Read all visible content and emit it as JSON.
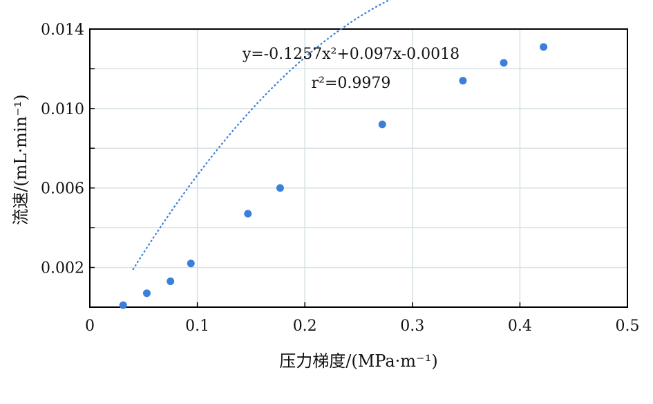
{
  "chart_data": {
    "type": "scatter",
    "xlabel": "压力梯度/(MPa·m⁻¹)",
    "ylabel": "流速/(mL·min⁻¹)",
    "xlim": [
      0,
      0.5
    ],
    "ylim": [
      0,
      0.014
    ],
    "xticks": [
      "0",
      "0.1",
      "0.2",
      "0.3",
      "0.4",
      "0.5"
    ],
    "yticks": [
      "0.002",
      "0.006",
      "0.010",
      "0.014"
    ],
    "grid": true,
    "series": [
      {
        "points": [
          {
            "x": 0.031,
            "y": 0.0001
          },
          {
            "x": 0.053,
            "y": 0.0007
          },
          {
            "x": 0.075,
            "y": 0.0013
          },
          {
            "x": 0.094,
            "y": 0.0022
          },
          {
            "x": 0.147,
            "y": 0.0047
          },
          {
            "x": 0.177,
            "y": 0.006
          },
          {
            "x": 0.272,
            "y": 0.0092
          },
          {
            "x": 0.347,
            "y": 0.0114
          },
          {
            "x": 0.385,
            "y": 0.0123
          },
          {
            "x": 0.422,
            "y": 0.0131
          }
        ],
        "color": "#3b7fdc"
      }
    ],
    "fit": {
      "a": -0.1257,
      "b": 0.097,
      "c": -0.0018,
      "x_range": [
        0.04,
        0.425
      ],
      "color": "#3b7fdc",
      "equation_text": "y=-0.1257x²+0.097x-0.0018",
      "r2_text": "r²=0.9979"
    }
  }
}
